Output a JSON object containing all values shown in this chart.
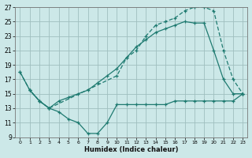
{
  "xlabel": "Humidex (Indice chaleur)",
  "bg_color": "#cce8e8",
  "grid_color": "#9fbfbf",
  "line_color": "#1e7a70",
  "xlim": [
    0,
    23
  ],
  "ylim": [
    9,
    27
  ],
  "xticks": [
    0,
    1,
    2,
    3,
    4,
    5,
    6,
    7,
    8,
    9,
    10,
    11,
    12,
    13,
    14,
    15,
    16,
    17,
    18,
    19,
    20,
    21,
    22,
    23
  ],
  "yticks": [
    9,
    11,
    13,
    15,
    17,
    19,
    21,
    23,
    25,
    27
  ],
  "series1_x": [
    0,
    1,
    2,
    3,
    10,
    11,
    12,
    13,
    14,
    15,
    16,
    17,
    18,
    19,
    20,
    21,
    22,
    23
  ],
  "series1_y": [
    18,
    15.5,
    14,
    13,
    17.5,
    20,
    21,
    23,
    24.5,
    25,
    25.5,
    26.5,
    27,
    27,
    26.5,
    21,
    17,
    15
  ],
  "series2_x": [
    0,
    1,
    2,
    3,
    4,
    5,
    6,
    7,
    8,
    9,
    10,
    11,
    12,
    13,
    14,
    15,
    16,
    17,
    18,
    19,
    20,
    21,
    22,
    23
  ],
  "series2_y": [
    18,
    15.5,
    14,
    13,
    14,
    14.5,
    15,
    15.5,
    16.5,
    17.5,
    18.5,
    20,
    21.5,
    22.5,
    23.5,
    24,
    24.5,
    25,
    24.8,
    24.8,
    21,
    17,
    15,
    15
  ],
  "series3_x": [
    1,
    2,
    3,
    4,
    5,
    6,
    7,
    8,
    9,
    10,
    11,
    12,
    13,
    14,
    15,
    16,
    17,
    18,
    19,
    20,
    21,
    22,
    23
  ],
  "series3_y": [
    15.5,
    14,
    13,
    12.5,
    11.5,
    11,
    9.5,
    9.5,
    11,
    13.5,
    13.5,
    13.5,
    13.5,
    13.5,
    13.5,
    14,
    14,
    14,
    14,
    14,
    14,
    14,
    15
  ]
}
